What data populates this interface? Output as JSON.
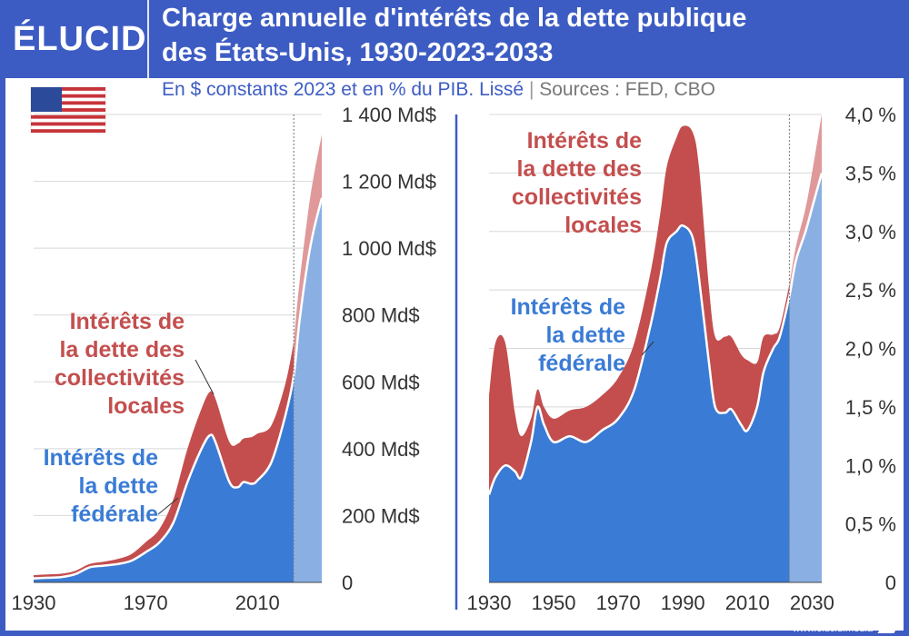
{
  "header": {
    "logo": "ÉLUCID",
    "title_line1": "Charge annuelle d'intérêts de la dette publique",
    "title_line2": "des États-Unis, 1930-2023-2033",
    "subtitle_main": "En $ constants 2023 et en % du PIB. Lissé",
    "subtitle_sep": "|",
    "subtitle_sources": "Sources : FED, CBO"
  },
  "footer": {
    "url": "www.elucid.media"
  },
  "flag_icon": "us-flag-icon",
  "colors": {
    "background": "#3d5cc3",
    "federal": "#3a7bd5",
    "federal_projection": "#8ab0e3",
    "local": "#c44e4e",
    "local_projection": "#e0999b",
    "federal_label": "#3a7bd5",
    "local_label": "#c44e4e"
  },
  "chart_data": [
    {
      "type": "area",
      "stacked": true,
      "x": [
        1930,
        1935,
        1940,
        1945,
        1950,
        1955,
        1960,
        1965,
        1970,
        1975,
        1980,
        1985,
        1990,
        1993,
        1995,
        2000,
        2003,
        2005,
        2008,
        2010,
        2015,
        2020,
        2023,
        2025,
        2028,
        2030,
        2033
      ],
      "series": [
        {
          "name": "Intérêts de la dette fédérale",
          "values": [
            12,
            14,
            16,
            25,
            45,
            50,
            55,
            65,
            90,
            120,
            180,
            300,
            400,
            440,
            420,
            300,
            285,
            300,
            295,
            305,
            360,
            500,
            620,
            780,
            960,
            1050,
            1150
          ]
        },
        {
          "name": "Intérêts de la dette des collectivités locales",
          "values": [
            10,
            10,
            10,
            10,
            10,
            12,
            15,
            20,
            30,
            40,
            70,
            100,
            120,
            130,
            130,
            120,
            130,
            130,
            140,
            140,
            110,
            95,
            100,
            115,
            140,
            160,
            190
          ]
        }
      ],
      "projection_from": 2023,
      "xticks": [
        "1930",
        "1970",
        "2010"
      ],
      "yticks": [
        "0",
        "200 Md$",
        "400 Md$",
        "600 Md$",
        "800 Md$",
        "1 000 Md$",
        "1 200 Md$",
        "1 400 Md$"
      ],
      "ylim": [
        0,
        1400
      ],
      "xlim": [
        1930,
        2033
      ]
    },
    {
      "type": "area",
      "stacked": true,
      "x": [
        1930,
        1932,
        1935,
        1938,
        1940,
        1943,
        1945,
        1947,
        1950,
        1955,
        1960,
        1965,
        1970,
        1975,
        1980,
        1983,
        1985,
        1988,
        1990,
        1993,
        1995,
        1998,
        2000,
        2003,
        2005,
        2008,
        2010,
        2013,
        2015,
        2018,
        2020,
        2023,
        2025,
        2028,
        2030,
        2033
      ],
      "series": [
        {
          "name": "Intérêts de la dette fédérale",
          "values": [
            0.75,
            0.9,
            1.0,
            0.95,
            0.9,
            1.2,
            1.5,
            1.35,
            1.2,
            1.25,
            1.2,
            1.3,
            1.4,
            1.65,
            2.2,
            2.6,
            2.9,
            3.0,
            3.05,
            2.95,
            2.6,
            1.9,
            1.5,
            1.45,
            1.48,
            1.35,
            1.3,
            1.5,
            1.8,
            2.0,
            2.1,
            2.45,
            2.75,
            3.0,
            3.2,
            3.5
          ]
        },
        {
          "name": "Intérêts de la dette des collectivités locales",
          "values": [
            0.85,
            1.15,
            1.05,
            0.5,
            0.35,
            0.2,
            0.15,
            0.15,
            0.2,
            0.22,
            0.3,
            0.3,
            0.35,
            0.4,
            0.45,
            0.55,
            0.65,
            0.8,
            0.85,
            0.9,
            0.95,
            0.65,
            0.6,
            0.65,
            0.62,
            0.6,
            0.6,
            0.38,
            0.3,
            0.12,
            0.08,
            0.1,
            0.12,
            0.2,
            0.3,
            0.5
          ]
        }
      ],
      "projection_from": 2023,
      "xticks": [
        "1930",
        "1950",
        "1970",
        "1990",
        "2010",
        "2030"
      ],
      "yticks": [
        "0",
        "0,5 %",
        "1,0 %",
        "1,5 %",
        "2,0 %",
        "2,5 %",
        "3,0 %",
        "3,5 %",
        "4,0 %"
      ],
      "ylim": [
        0,
        4.0
      ],
      "xlim": [
        1930,
        2033
      ]
    }
  ],
  "labels": {
    "left_federal": [
      "Intérêts de",
      "la dette",
      "fédérale"
    ],
    "left_local": [
      "Intérêts de",
      "la dette des",
      "collectivités",
      "locales"
    ],
    "right_federal": [
      "Intérêts de",
      "la dette",
      "fédérale"
    ],
    "right_local": [
      "Intérêts de",
      "la dette des",
      "collectivités",
      "locales"
    ]
  }
}
